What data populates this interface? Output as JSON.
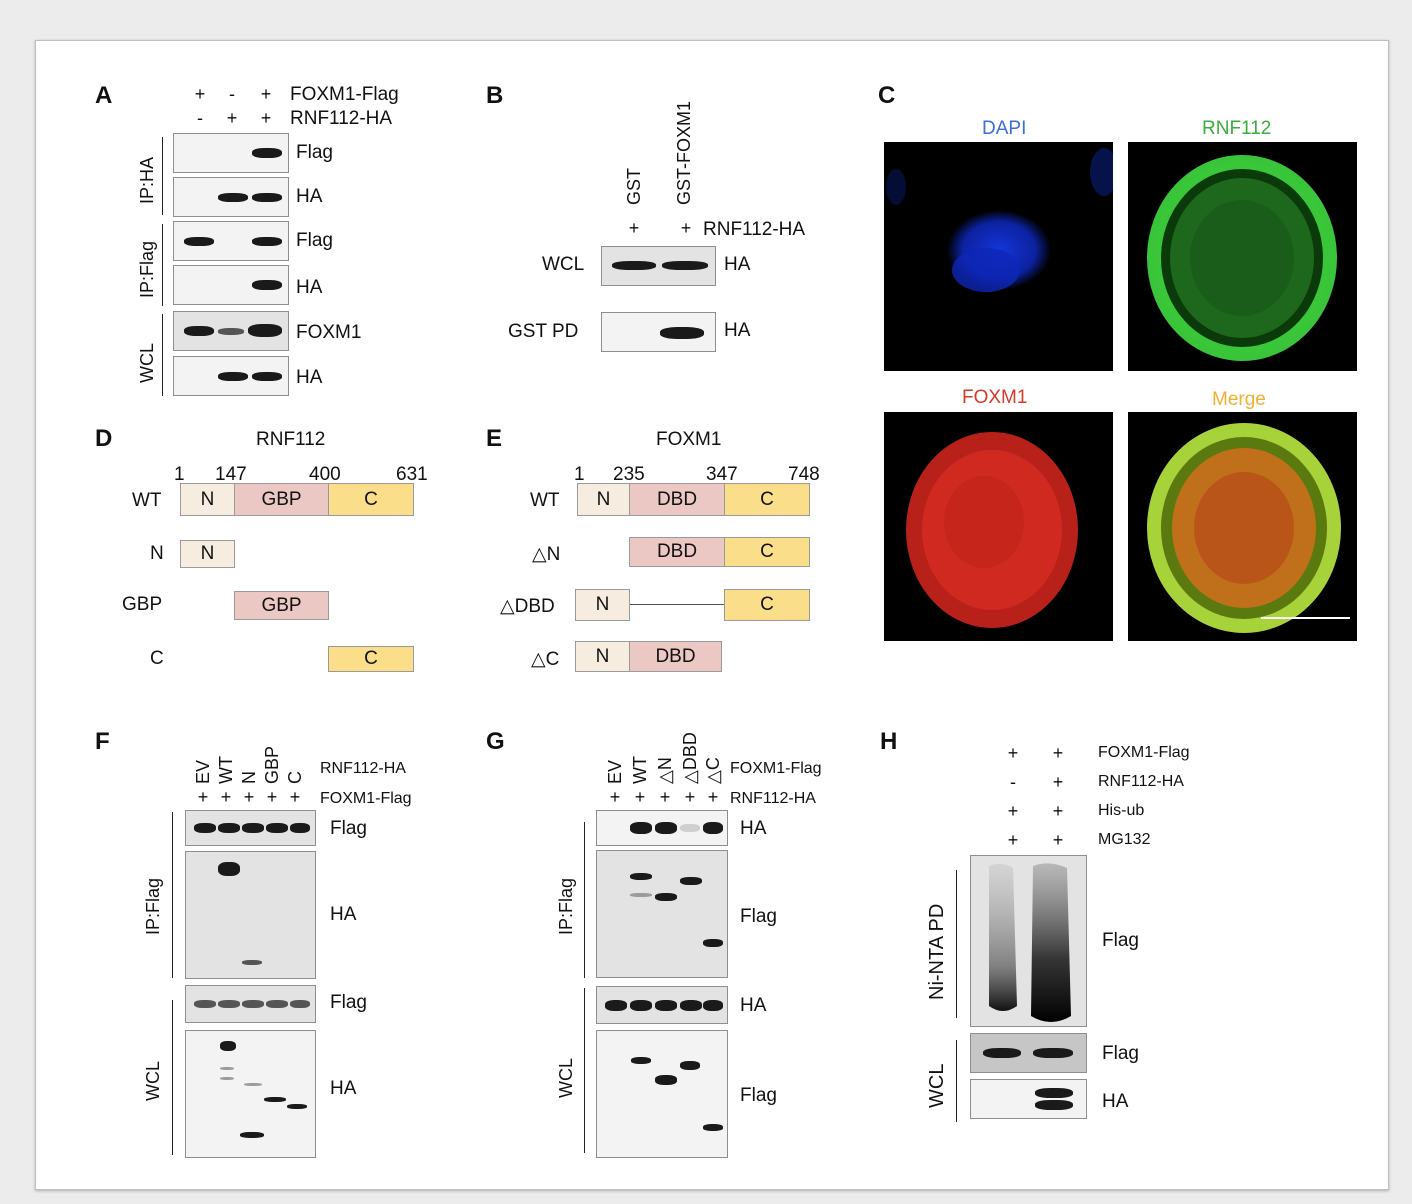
{
  "panels": {
    "A": {
      "letter": "A",
      "header_rows": [
        {
          "label": "FOXM1-Flag",
          "signs": [
            "+",
            "-",
            "+"
          ]
        },
        {
          "label": "RNF112-HA",
          "signs": [
            "-",
            "+",
            "+"
          ]
        }
      ],
      "groups": [
        "IP:HA",
        "IP:Flag",
        "WCL"
      ],
      "blot_labels": [
        "Flag",
        "HA",
        "Flag",
        "HA",
        "FOXM1",
        "HA"
      ]
    },
    "B": {
      "letter": "B",
      "lanes": [
        "GST",
        "GST-FOXM1"
      ],
      "signs": [
        "+",
        "+"
      ],
      "row_label": "RNF112-HA",
      "left_labels": [
        "WCL",
        "GST PD"
      ],
      "right_labels": [
        "HA",
        "HA"
      ]
    },
    "C": {
      "letter": "C",
      "channels": [
        {
          "name": "DAPI",
          "color": "#3a6fd8"
        },
        {
          "name": "RNF112",
          "color": "#3aae3a"
        },
        {
          "name": "FOXM1",
          "color": "#d63a2a"
        },
        {
          "name": "Merge",
          "color": "#f0b030"
        }
      ]
    },
    "D": {
      "letter": "D",
      "title": "RNF112",
      "positions": [
        "1",
        "147",
        "400",
        "631"
      ],
      "rows": [
        {
          "label": "WT",
          "domains": [
            "N",
            "GBP",
            "C"
          ]
        },
        {
          "label": "N",
          "domains": [
            "N"
          ]
        },
        {
          "label": "GBP",
          "domains": [
            "GBP"
          ]
        },
        {
          "label": "C",
          "domains": [
            "C"
          ]
        }
      ]
    },
    "E": {
      "letter": "E",
      "title": "FOXM1",
      "positions": [
        "1",
        "235",
        "347",
        "748"
      ],
      "rows": [
        {
          "label": "WT",
          "domains": [
            "N",
            "DBD",
            "C"
          ]
        },
        {
          "label": "△N",
          "domains": [
            "DBD",
            "C"
          ]
        },
        {
          "label": "△DBD",
          "domains": [
            "N",
            "C"
          ]
        },
        {
          "label": "△C",
          "domains": [
            "N",
            "DBD"
          ]
        }
      ]
    },
    "F": {
      "letter": "F",
      "lanes": [
        "EV",
        "WT",
        "N",
        "GBP",
        "C"
      ],
      "lane_row_label": "RNF112-HA",
      "signs": [
        "+",
        "+",
        "+",
        "+",
        "+"
      ],
      "sign_row_label": "FOXM1-Flag",
      "groups": [
        "IP:Flag",
        "WCL"
      ],
      "blot_labels": [
        "Flag",
        "HA",
        "Flag",
        "HA"
      ]
    },
    "G": {
      "letter": "G",
      "lanes": [
        "EV",
        "WT",
        "△N",
        "△DBD",
        "△C"
      ],
      "lane_row_label": "FOXM1-Flag",
      "signs": [
        "+",
        "+",
        "+",
        "+",
        "+"
      ],
      "sign_row_label": "RNF112-HA",
      "groups": [
        "IP:Flag",
        "WCL"
      ],
      "blot_labels": [
        "HA",
        "Flag",
        "HA",
        "Flag"
      ]
    },
    "H": {
      "letter": "H",
      "header_rows": [
        {
          "label": "FOXM1-Flag",
          "signs": [
            "+",
            "+"
          ]
        },
        {
          "label": "RNF112-HA",
          "signs": [
            "-",
            "+"
          ]
        },
        {
          "label": "His-ub",
          "signs": [
            "+",
            "+"
          ]
        },
        {
          "label": "MG132",
          "signs": [
            "+",
            "+"
          ]
        }
      ],
      "groups": [
        "Ni-NTA PD",
        "WCL"
      ],
      "blot_labels": [
        "Flag",
        "Flag",
        "HA"
      ]
    }
  }
}
